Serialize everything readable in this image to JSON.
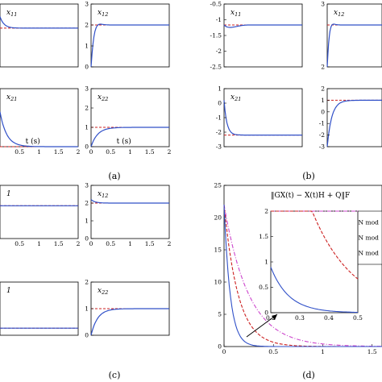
{
  "captions": [
    "(a)",
    "(b)",
    "(c)",
    "(d)"
  ],
  "colors": {
    "solid": "#3050c8",
    "dashed": "#cc2020",
    "dashdot": "#cc44cc",
    "axis": "#000000"
  },
  "chart_data": [
    {
      "type": "line",
      "panel": "(a)",
      "subplots": [
        {
          "label": "x11",
          "xlim": [
            0,
            2
          ],
          "ylim": [
            0,
            3
          ],
          "xticks": [],
          "yticks": [],
          "xlabel": "",
          "target": 1.85,
          "init": 2.4,
          "shape": "over"
        },
        {
          "label": "x12",
          "xlim": [
            0,
            2
          ],
          "ylim": [
            0,
            3
          ],
          "xticks": [],
          "yticks": [
            "3",
            "2",
            "1",
            "0"
          ],
          "xlabel": "",
          "target": 2,
          "init": 0,
          "shape": "rise_overshoot"
        },
        {
          "label": "x21",
          "xlim": [
            0,
            2
          ],
          "ylim": [
            0,
            3
          ],
          "xticks": [
            "0.5",
            "1",
            "1.5",
            "2"
          ],
          "yticks": [],
          "xlabel": "t (s)",
          "target": 0,
          "init": 1.8,
          "shape": "decay"
        },
        {
          "label": "x22",
          "xlim": [
            0,
            2
          ],
          "ylim": [
            0,
            3
          ],
          "xticks": [
            "0",
            "0.5",
            "1",
            "1.5",
            "2"
          ],
          "yticks": [
            "3",
            "2",
            "1",
            "0"
          ],
          "xlabel": "t (s)",
          "target": 1,
          "init": 0,
          "shape": "rise"
        }
      ]
    },
    {
      "type": "line",
      "panel": "(b)",
      "subplots": [
        {
          "label": "x11",
          "xlim": [
            0,
            2
          ],
          "ylim": [
            -3,
            0
          ],
          "xticks": [],
          "yticks": [
            "-0.5",
            "-1",
            "-1.5",
            "-2",
            "-2.5"
          ],
          "xlabel": "",
          "target": -1,
          "init": -1,
          "shape": "dip"
        },
        {
          "label": "x12",
          "xlim": [
            0,
            2
          ],
          "ylim": [
            0,
            3
          ],
          "xticks": [],
          "yticks": [
            "3",
            "2"
          ],
          "xlabel": "",
          "target": 2,
          "init": 0,
          "shape": "rise_overshoot"
        },
        {
          "label": "x21",
          "xlim": [
            0,
            2
          ],
          "ylim": [
            -3,
            2
          ],
          "xticks": [],
          "yticks": [
            "1",
            "0",
            "-1",
            "-2",
            "-3"
          ],
          "xlabel": "",
          "target": -2,
          "init": 1,
          "shape": "fall"
        },
        {
          "label": "",
          "xlim": [
            0,
            2
          ],
          "ylim": [
            -3,
            2
          ],
          "xticks": [],
          "yticks": [
            "2",
            "1",
            "0",
            "-1",
            "-2",
            "-3"
          ],
          "xlabel": "",
          "target": 1,
          "init": -3,
          "shape": "rise"
        }
      ]
    },
    {
      "type": "line",
      "panel": "(c)",
      "subplots": [
        {
          "label": "1",
          "xlim": [
            0,
            2
          ],
          "ylim": [
            0,
            3
          ],
          "xticks": [
            "0.5",
            "1",
            "1.5",
            "2"
          ],
          "yticks": [],
          "xlabel": "",
          "target": 1.85,
          "init": 1.85,
          "shape": "flat"
        },
        {
          "label": "x12",
          "xlim": [
            0,
            2
          ],
          "ylim": [
            0,
            3
          ],
          "xticks": [
            "0",
            "0.5",
            "1",
            "1.5",
            "2"
          ],
          "yticks": [
            "3",
            "2",
            "1",
            "0"
          ],
          "xlabel": "",
          "target": 2,
          "init": 2.2,
          "shape": "over"
        },
        {
          "label": "1",
          "xlim": [
            0,
            2
          ],
          "ylim": [
            0,
            3
          ],
          "xticks": [],
          "yticks": [],
          "xlabel": "",
          "target": 0.4,
          "init": 0.4,
          "shape": "flat"
        },
        {
          "label": "x22",
          "xlim": [
            0,
            2
          ],
          "ylim": [
            0,
            2
          ],
          "xticks": [],
          "yticks": [
            "2",
            "1",
            "0"
          ],
          "xlabel": "",
          "target": 1,
          "init": 0,
          "shape": "rise"
        }
      ]
    },
    {
      "type": "line",
      "panel": "(d)",
      "title": "‖GX(t) − X(t)H + Q‖F",
      "xlim": [
        0,
        1.6
      ],
      "ylim": [
        0,
        25
      ],
      "xticks": [
        "0",
        "0.5",
        "1",
        "1.5"
      ],
      "yticks": [
        "25",
        "20",
        "15",
        "10",
        "5",
        "0"
      ],
      "legend": [
        "GNN mod",
        "GNN mod",
        "GNN mod"
      ],
      "series": [
        {
          "name": "GNN mod",
          "style": "dashdot",
          "y0": 22,
          "rate": 4
        },
        {
          "name": "GNN mod",
          "style": "dashed",
          "y0": 22,
          "rate": 7
        },
        {
          "name": "GNN mod",
          "style": "solid",
          "y0": 22,
          "rate": 16
        }
      ],
      "inset": {
        "xlim": [
          0.2,
          0.5
        ],
        "ylim": [
          0,
          2
        ],
        "xticks": [
          "0.2",
          "0.3",
          "0.4",
          "0.5"
        ],
        "yticks": [
          "2",
          "1.5",
          "1",
          "0.5",
          "0"
        ]
      }
    }
  ]
}
